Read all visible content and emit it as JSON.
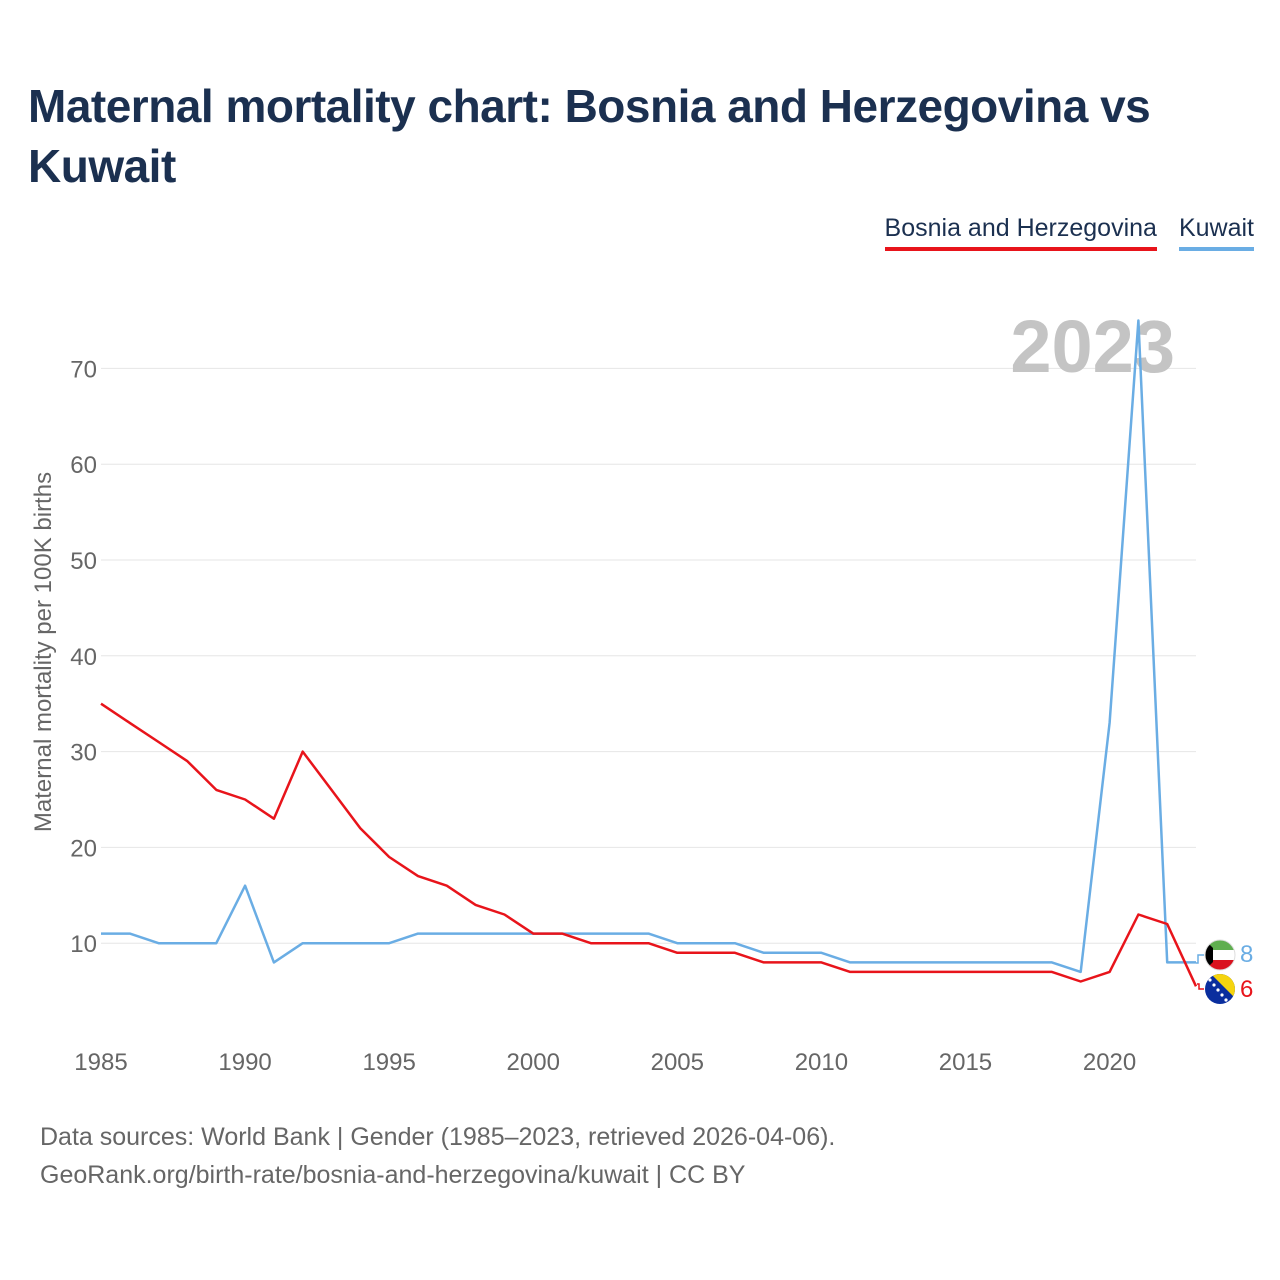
{
  "title": "Maternal mortality chart: Bosnia and Herzegovina vs Kuwait",
  "footer": {
    "line1": "Data sources: World Bank | Gender (1985–2023, retrieved 2026-04-06).",
    "line2": "GeoRank.org/birth-rate/bosnia-and-herzegovina/kuwait | CC BY"
  },
  "chart_data": {
    "type": "line",
    "title": "Maternal mortality chart: Bosnia and Herzegovina vs Kuwait",
    "xlabel": "",
    "ylabel": "Maternal mortality per 100K births",
    "year_label": "2023",
    "xlim": [
      1985,
      2023
    ],
    "ylim": [
      0,
      75
    ],
    "x_ticks": [
      1985,
      1990,
      1995,
      2000,
      2005,
      2010,
      2015,
      2020
    ],
    "y_ticks": [
      10,
      20,
      30,
      40,
      50,
      60,
      70
    ],
    "grid": true,
    "legend_position": "top-right",
    "x": [
      1985,
      1986,
      1987,
      1988,
      1989,
      1990,
      1991,
      1992,
      1993,
      1994,
      1995,
      1996,
      1997,
      1998,
      1999,
      2000,
      2001,
      2002,
      2003,
      2004,
      2005,
      2006,
      2007,
      2008,
      2009,
      2010,
      2011,
      2012,
      2013,
      2014,
      2015,
      2016,
      2017,
      2018,
      2019,
      2020,
      2021,
      2022,
      2023
    ],
    "series": [
      {
        "name": "Bosnia and Herzegovina",
        "color": "#e8141b",
        "end_label": "6",
        "values": [
          35,
          33,
          31,
          29,
          26,
          25,
          23,
          30,
          26,
          22,
          19,
          17,
          16,
          14,
          13,
          11,
          11,
          10,
          10,
          10,
          9,
          9,
          9,
          8,
          8,
          8,
          7,
          7,
          7,
          7,
          7,
          7,
          7,
          7,
          6,
          7,
          13,
          12,
          5.5
        ]
      },
      {
        "name": "Kuwait",
        "color": "#6aade4",
        "end_label": "8",
        "values": [
          11,
          11,
          10,
          10,
          10,
          16,
          8,
          10,
          10,
          10,
          10,
          11,
          11,
          11,
          11,
          11,
          11,
          11,
          11,
          11,
          10,
          10,
          10,
          9,
          9,
          9,
          8,
          8,
          8,
          8,
          8,
          8,
          8,
          8,
          7,
          33,
          75,
          8,
          8
        ]
      }
    ]
  }
}
